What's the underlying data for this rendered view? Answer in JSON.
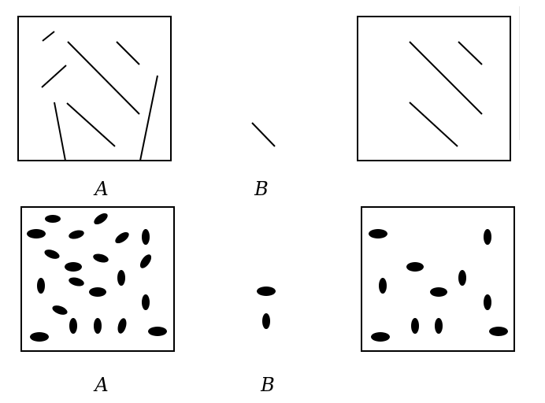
{
  "labels": {
    "top_a": "A",
    "top_b": "B",
    "bottom_a": "A",
    "bottom_b": "B"
  },
  "colors": {
    "ink": "#000000",
    "paper": "#ffffff"
  }
}
